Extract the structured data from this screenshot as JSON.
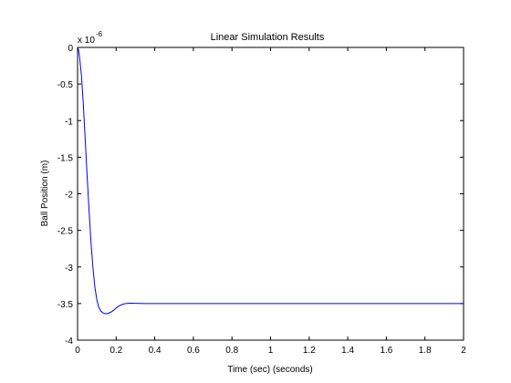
{
  "chart_data": {
    "type": "line",
    "title": "Linear Simulation Results",
    "xlabel": "Time (sec) (seconds)",
    "ylabel": "Ball Position (m)",
    "y_multiplier": {
      "base": "x 10",
      "exponent": "-6"
    },
    "xlim": [
      0,
      2
    ],
    "ylim": [
      -4,
      0
    ],
    "x_ticks": [
      0,
      0.2,
      0.4,
      0.6,
      0.8,
      1,
      1.2,
      1.4,
      1.6,
      1.8,
      2
    ],
    "x_tick_labels": [
      "0",
      "0.2",
      "0.4",
      "0.6",
      "0.8",
      "1",
      "1.2",
      "1.4",
      "1.6",
      "1.8",
      "2"
    ],
    "y_ticks": [
      0,
      -0.5,
      -1,
      -1.5,
      -2,
      -2.5,
      -3,
      -3.5,
      -4
    ],
    "y_tick_labels": [
      "0",
      "-0.5",
      "-1",
      "-1.5",
      "-2",
      "-2.5",
      "-3",
      "-3.5",
      "-4"
    ],
    "grid": false,
    "series": [
      {
        "color": "#0000ff",
        "x": [
          0,
          0.005,
          0.01,
          0.02,
          0.03,
          0.04,
          0.05,
          0.06,
          0.07,
          0.08,
          0.09,
          0.1,
          0.11,
          0.12,
          0.13,
          0.14,
          0.15,
          0.16,
          0.17,
          0.18,
          0.19,
          0.2,
          0.22,
          0.24,
          0.26,
          0.28,
          0.3,
          0.35,
          0.4,
          0.5,
          0.6,
          0.8,
          1.0,
          1.2,
          1.4,
          1.6,
          1.8,
          2.0
        ],
        "y": [
          0,
          -0.03,
          -0.12,
          -0.38,
          -0.78,
          -1.28,
          -1.78,
          -2.25,
          -2.68,
          -3.02,
          -3.28,
          -3.45,
          -3.55,
          -3.6,
          -3.625,
          -3.635,
          -3.64,
          -3.632,
          -3.62,
          -3.605,
          -3.585,
          -3.56,
          -3.525,
          -3.505,
          -3.497,
          -3.496,
          -3.497,
          -3.5,
          -3.5,
          -3.5,
          -3.5,
          -3.5,
          -3.5,
          -3.5,
          -3.5,
          -3.5,
          -3.5,
          -3.5
        ]
      }
    ]
  }
}
